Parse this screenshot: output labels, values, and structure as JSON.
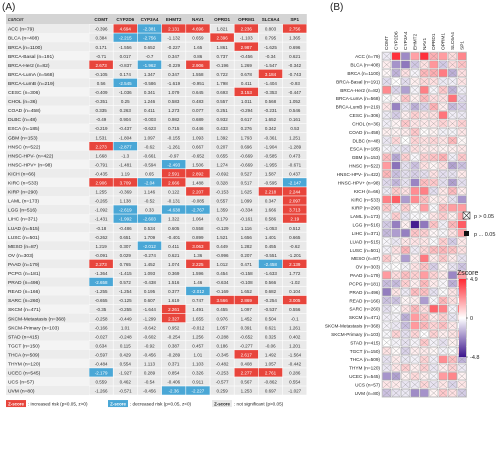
{
  "panel_a_label": "(A)",
  "panel_b_label": "(B)",
  "chart_data": [
    {
      "type": "table",
      "header_first": "cancer",
      "columns": [
        "COMT",
        "CYP2D6",
        "CYP3A4",
        "EHMT2",
        "NAV1",
        "OPRD1",
        "OPRM1",
        "SLC6A4",
        "SP1"
      ],
      "rows": [
        {
          "cancer": "ACC (n=79)",
          "values": [
            "-0.396",
            "4.694",
            "-2.381",
            "2.131",
            "4.696",
            "1.821",
            "2.236",
            "0.803",
            "2.756"
          ]
        },
        {
          "cancer": "BLCA (n=408)",
          "values": [
            "0.384",
            "-2.215",
            "-2.756",
            "-1.132",
            "0.659",
            "2.396",
            "-1.103",
            "0.795",
            "1.365"
          ]
        },
        {
          "cancer": "BRCA (n=1100)",
          "values": [
            "0.171",
            "-1.556",
            "0.652",
            "-0.227",
            "1.65",
            "1.861",
            "2.987",
            "-1.625",
            "0.696"
          ]
        },
        {
          "cancer": "BRCA-Basal (n=191)",
          "values": [
            "-0.71",
            "0.017",
            "-0.7",
            "0.347",
            "0.86",
            "0.737",
            "-0.456",
            "-0.34",
            "0.621"
          ]
        },
        {
          "cancer": "BRCA-Her2 (n=82)",
          "values": [
            "2.673",
            "-0.837",
            "-1.962",
            "-0.229",
            "2.906",
            "-0.196",
            "1.269",
            "-1.547",
            "-0.342"
          ]
        },
        {
          "cancer": "BRCA-LumA (n=568)",
          "values": [
            "-0.105",
            "0.174",
            "1.347",
            "0.347",
            "1.558",
            "0.722",
            "0.678",
            "3.184",
            "-0.743"
          ]
        },
        {
          "cancer": "BRCA-LumB (n=219)",
          "values": [
            "0.56",
            "-2.545",
            "-0.586",
            "-1.619",
            "-0.951",
            "1.798",
            "0.411",
            "-1.404",
            "-0.93"
          ]
        },
        {
          "cancer": "CESC (n=306)",
          "values": [
            "-0.409",
            "-1.036",
            "0.341",
            "1.079",
            "0.645",
            "0.693",
            "3.153",
            "-0.353",
            "-0.447"
          ]
        },
        {
          "cancer": "CHOL (n=36)",
          "values": [
            "-0.351",
            "0.25",
            "1.246",
            "0.583",
            "0.483",
            "0.557",
            "1.011",
            "0.568",
            "1.052"
          ]
        },
        {
          "cancer": "COAD (n=458)",
          "values": [
            "0.335",
            "0.263",
            "0.411",
            "1.273",
            "0.077",
            "0.251",
            "-0.294",
            "-0.231",
            "0.546"
          ]
        },
        {
          "cancer": "DLBC (n=48)",
          "values": [
            "-0.49",
            "0.904",
            "-0.003",
            "0.982",
            "0.689",
            "0.932",
            "0.617",
            "1.652",
            "0.161"
          ]
        },
        {
          "cancer": "ESCA (n=185)",
          "values": [
            "-0.219",
            "-0.437",
            "-0.623",
            "0.715",
            "0.446",
            "0.433",
            "0.276",
            "0.342",
            "0.53"
          ]
        },
        {
          "cancer": "GBM (n=153)",
          "values": [
            "1.531",
            "-1.804",
            "1.097",
            "-0.155",
            "1.093",
            "1.392",
            "1.793",
            "-0.361",
            "1.251"
          ]
        },
        {
          "cancer": "HNSC (n=522)",
          "values": [
            "2.273",
            "-2.877",
            "-0.62",
            "-1.261",
            "0.667",
            "0.207",
            "0.696",
            "-1.904",
            "-1.289"
          ]
        },
        {
          "cancer": "HNSC-HPV- (n=422)",
          "values": [
            "1.668",
            "-1.3",
            "-0.661",
            "-0.97",
            "-0.652",
            "0.655",
            "-0.669",
            "-0.585",
            "0.473"
          ]
        },
        {
          "cancer": "HNSC-HPV+ (n=98)",
          "values": [
            "-0.791",
            "-1.481",
            "-0.594",
            "-2.493",
            "1.506",
            "1.274",
            "-0.669",
            "-1.955",
            "-0.671"
          ]
        },
        {
          "cancer": "KICH (n=66)",
          "values": [
            "-0.435",
            "1.19",
            "0.65",
            "2.591",
            "2.892",
            "-0.692",
            "0.527",
            "1.587",
            "0.437"
          ]
        },
        {
          "cancer": "KIRC (n=533)",
          "values": [
            "2.906",
            "3.709",
            "-2.04",
            "2.666",
            "1.488",
            "0.328",
            "0.517",
            "-0.595",
            "-2.147"
          ]
        },
        {
          "cancer": "KIRP (n=290)",
          "values": [
            "1.255",
            "-0.369",
            "1.146",
            "0.122",
            "2.207",
            "-0.153",
            "1.625",
            "2.218",
            "2.244"
          ]
        },
        {
          "cancer": "LAML (n=173)",
          "values": [
            "-0.265",
            "1.138",
            "-0.52",
            "-0.131",
            "-0.085",
            "0.557",
            "1.099",
            "0.347",
            "2.097"
          ]
        },
        {
          "cancer": "LGG (n=516)",
          "values": [
            "-1.092",
            "-2.619",
            "0.33",
            "-4.638",
            "-2.767",
            "1.359",
            "-0.334",
            "1.666",
            "3.713"
          ]
        },
        {
          "cancer": "LIHC (n=371)",
          "values": [
            "-1.431",
            "-1.992",
            "-2.603",
            "1.322",
            "1.064",
            "0.179",
            "-0.161",
            "0.586",
            "2.19"
          ]
        },
        {
          "cancer": "LUAD (n=515)",
          "values": [
            "-0.18",
            "-0.486",
            "0.534",
            "0.605",
            "0.558",
            "-0.129",
            "1.116",
            "-1.053",
            "0.512"
          ]
        },
        {
          "cancer": "LUSC (n=501)",
          "values": [
            "-0.262",
            "0.651",
            "1.709",
            "-0.401",
            "0.899",
            "1.521",
            "1.656",
            "1.401",
            "0.665"
          ]
        },
        {
          "cancer": "MESO (n=87)",
          "values": [
            "1.219",
            "0.307",
            "-2.012",
            "0.411",
            "3.063",
            "0.449",
            "1.282",
            "0.455",
            "-0.62"
          ]
        },
        {
          "cancer": "OV (n=303)",
          "values": [
            "-0.091",
            "0.029",
            "-0.274",
            "0.621",
            "1.36",
            "-0.996",
            "0.207",
            "-0.551",
            "-1.201"
          ]
        },
        {
          "cancer": "PAAD (n=179)",
          "values": [
            "2.273",
            "0.765",
            "1.452",
            "1.074",
            "2.225",
            "1.012",
            "0.471",
            "-2.458",
            "2.139"
          ]
        },
        {
          "cancer": "PCPG (n=181)",
          "values": [
            "-1.364",
            "-1.415",
            "1.093",
            "0.369",
            "1.596",
            "0.454",
            "-0.158",
            "-1.633",
            "1.772"
          ]
        },
        {
          "cancer": "PRAD (n=496)",
          "values": [
            "-2.658",
            "0.572",
            "-0.438",
            "1.516",
            "1.46",
            "-0.634",
            "-0.108",
            "0.566",
            "-1.02"
          ]
        },
        {
          "cancer": "READ (n=166)",
          "values": [
            "-1.255",
            "-1.254",
            "0.195",
            "0.377",
            "-2.012",
            "-0.169",
            "1.652",
            "0.682",
            "0.104"
          ]
        },
        {
          "cancer": "SARC (n=260)",
          "values": [
            "-0.655",
            "-0.125",
            "0.607",
            "1.619",
            "0.747",
            "3.566",
            "2.869",
            "-0.254",
            "3.005"
          ]
        },
        {
          "cancer": "SKCM (n=471)",
          "values": [
            "-0.35",
            "-0.255",
            "-1.644",
            "2.261",
            "1.491",
            "0.455",
            "1.097",
            "-0.537",
            "0.556"
          ]
        },
        {
          "cancer": "SKCM-Metastasis (n=368)",
          "values": [
            "-0.258",
            "-0.449",
            "-1.299",
            "2.327",
            "1.655",
            "0.976",
            "1.452",
            "0.504",
            "-0.1"
          ]
        },
        {
          "cancer": "SKCM-Primary (n=103)",
          "values": [
            "-0.166",
            "1.01",
            "-0.642",
            "0.952",
            "-0.012",
            "1.057",
            "0.391",
            "0.621",
            "1.261"
          ]
        },
        {
          "cancer": "STAD (n=415)",
          "values": [
            "-0.027",
            "-0.248",
            "-0.602",
            "-0.254",
            "1.256",
            "-0.288",
            "-0.652",
            "0.325",
            "0.402"
          ]
        },
        {
          "cancer": "TGCT (n=150)",
          "values": [
            "0.634",
            "0.115",
            "-0.92",
            "0.387",
            "0.457",
            "0.186",
            "-0.277",
            "-0.06",
            "1.201"
          ]
        },
        {
          "cancer": "THCA (n=509)",
          "values": [
            "-0.597",
            "0.429",
            "-0.456",
            "-0.289",
            "1.01",
            "-0.345",
            "2.617",
            "1.492",
            "-1.564"
          ]
        },
        {
          "cancer": "THYM (n=120)",
          "values": [
            "-0.484",
            "0.554",
            "1.113",
            "0.371",
            "1.103",
            "-0.482",
            "0.408",
            "1.057",
            "-0.442"
          ]
        },
        {
          "cancer": "UCEC (n=545)",
          "values": [
            "-2.179",
            "-1.927",
            "0.289",
            "0.854",
            "0.326",
            "-0.253",
            "2.277",
            "2.761",
            "0.286"
          ]
        },
        {
          "cancer": "UCS (n=57)",
          "values": [
            "0.559",
            "0.462",
            "-0.54",
            "-0.406",
            "0.911",
            "-0.577",
            "0.567",
            "-0.862",
            "0.554"
          ]
        },
        {
          "cancer": "UVM (n=80)",
          "values": [
            "-1.266",
            "-0.571",
            "-0.456",
            "-2.36",
            "-2.227",
            "0.259",
            "1.253",
            "0.697",
            "-1.027"
          ]
        }
      ],
      "legend": [
        {
          "swatch": "Z-score",
          "text": ": increased risk (p<0.05, z>0)",
          "color": "#e8453c"
        },
        {
          "swatch": "Z-score",
          "text": ": decreased risk (p<0.05, z<0)",
          "color": "#4aa7d6"
        },
        {
          "swatch": "Z-score",
          "text": ": not significant (p>0.05)",
          "color": "#e9e9e9"
        }
      ]
    },
    {
      "type": "heatmap",
      "columns": [
        "COMT",
        "CYP2D6",
        "CYP3A4",
        "EHMT2",
        "NAV1",
        "OPRD1",
        "OPRM1",
        "SLC6A4",
        "SP1"
      ],
      "legend_pvalue": [
        {
          "symbol": "crossed-box",
          "label": "p > 0.05"
        },
        {
          "symbol": "filled-square",
          "label": "p ... 0.05"
        }
      ],
      "colorbar": {
        "title": "Zscore",
        "max_label": "4.9",
        "zero_label": "0",
        "min_label": "-4.8",
        "range": [
          -4.8,
          4.9
        ]
      }
    }
  ]
}
